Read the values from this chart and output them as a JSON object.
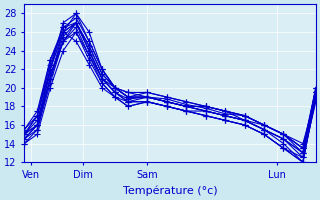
{
  "xlabel": "Température (°c)",
  "bg_color": "#cce8f0",
  "plot_bg_color": "#daeef5",
  "line_color": "#0000cc",
  "marker": "+",
  "markersize": 4,
  "linewidth": 0.8,
  "ylim": [
    12,
    29
  ],
  "yticks": [
    12,
    14,
    16,
    18,
    20,
    22,
    24,
    26,
    28
  ],
  "xlim": [
    0,
    90
  ],
  "xtick_positions": [
    2,
    18,
    38,
    78
  ],
  "xtick_labels": [
    "Ven",
    "Dim",
    "Sam",
    "Lun"
  ],
  "series": [
    {
      "x": [
        0,
        4,
        8,
        12,
        16,
        20,
        24,
        28,
        32,
        38,
        44,
        50,
        56,
        62,
        68,
        74,
        80,
        86,
        90
      ],
      "y": [
        15,
        16,
        21,
        26,
        28,
        25,
        22,
        20,
        19,
        19,
        18.5,
        18,
        18,
        17.5,
        17,
        16,
        15,
        14,
        19
      ]
    },
    {
      "x": [
        0,
        4,
        8,
        12,
        16,
        20,
        24,
        28,
        32,
        38,
        44,
        50,
        56,
        62,
        68,
        74,
        80,
        86,
        90
      ],
      "y": [
        15,
        16,
        22,
        27,
        28,
        26,
        22,
        20,
        19,
        19,
        18.5,
        18,
        18,
        17.5,
        16.5,
        15.5,
        14.5,
        13,
        20
      ]
    },
    {
      "x": [
        0,
        4,
        8,
        12,
        16,
        20,
        24,
        28,
        32,
        38,
        44,
        50,
        56,
        62,
        68,
        74,
        80,
        86,
        90
      ],
      "y": [
        14.5,
        15.5,
        20.5,
        25,
        27,
        24,
        21,
        19.5,
        18.5,
        18.5,
        18,
        17.5,
        17.5,
        17,
        16.5,
        15.5,
        14,
        12,
        19.5
      ]
    },
    {
      "x": [
        0,
        4,
        8,
        12,
        16,
        20,
        24,
        28,
        32,
        38,
        44,
        50,
        56,
        62,
        68,
        74,
        80,
        86,
        90
      ],
      "y": [
        15,
        16.5,
        21.5,
        25,
        26,
        23.5,
        21,
        20,
        19,
        19.5,
        19,
        18.5,
        18,
        17.5,
        17,
        16,
        15,
        13.5,
        19
      ]
    },
    {
      "x": [
        0,
        4,
        8,
        12,
        16,
        20,
        24,
        28,
        32,
        38,
        44,
        50,
        56,
        62,
        68,
        74,
        80,
        86,
        90
      ],
      "y": [
        14,
        15,
        20,
        24,
        26,
        23,
        20.5,
        19,
        18,
        18.5,
        18,
        17.5,
        17,
        16.5,
        16,
        15,
        13.5,
        12.5,
        18.5
      ]
    },
    {
      "x": [
        0,
        4,
        8,
        12,
        16,
        20,
        24,
        28,
        32,
        38,
        44,
        50,
        56,
        62,
        68,
        74,
        80,
        86,
        90
      ],
      "y": [
        15,
        17,
        22,
        26,
        27,
        24.5,
        21.5,
        20,
        19,
        19,
        18.5,
        18,
        17.5,
        17,
        16.5,
        15.5,
        14.5,
        13,
        20
      ]
    },
    {
      "x": [
        0,
        4,
        8,
        12,
        16,
        20,
        24,
        28,
        32,
        38,
        44,
        50,
        56,
        62,
        68,
        74,
        80,
        86,
        90
      ],
      "y": [
        15.5,
        17,
        22.5,
        26.5,
        27.5,
        25,
        22,
        20,
        19.5,
        19,
        18.8,
        18.2,
        17.8,
        17.2,
        17,
        16,
        15,
        13,
        19.5
      ]
    },
    {
      "x": [
        0,
        4,
        8,
        12,
        16,
        20,
        24,
        28,
        32,
        38,
        44,
        50,
        56,
        62,
        68,
        74,
        80,
        86,
        90
      ],
      "y": [
        14.5,
        16,
        21,
        25.5,
        27,
        24,
        21,
        19.5,
        18.5,
        18.5,
        18,
        17.5,
        17,
        16.5,
        16,
        15,
        13.5,
        12,
        19
      ]
    },
    {
      "x": [
        0,
        4,
        8,
        12,
        16,
        20,
        24,
        28,
        32,
        38,
        44,
        50,
        56,
        62,
        68,
        74,
        80,
        86,
        90
      ],
      "y": [
        15,
        17,
        23,
        26,
        25,
        22.5,
        20,
        19,
        18.5,
        19,
        18.5,
        18,
        17.5,
        17,
        16.5,
        16,
        15,
        13.5,
        19.5
      ]
    },
    {
      "x": [
        0,
        4,
        8,
        12,
        16,
        20,
        24,
        28,
        32,
        38,
        44,
        50,
        56,
        62,
        68,
        74,
        80,
        86,
        90
      ],
      "y": [
        14.5,
        16,
        22,
        26,
        27,
        24,
        21,
        19.5,
        18.8,
        19,
        18.5,
        18,
        17.5,
        17,
        16.5,
        15.5,
        14.5,
        12.5,
        19
      ]
    },
    {
      "x": [
        0,
        4,
        8,
        12,
        16,
        20,
        24,
        28,
        32,
        38,
        44,
        50,
        56,
        62,
        68,
        74,
        80,
        86,
        90
      ],
      "y": [
        15.5,
        17.5,
        23,
        26.5,
        27,
        24.5,
        21.5,
        20,
        19.5,
        19.5,
        19,
        18.5,
        18,
        17.5,
        17,
        16,
        15,
        13.5,
        20
      ]
    },
    {
      "x": [
        0,
        4,
        8,
        12,
        16,
        20,
        24,
        28,
        32,
        38,
        44,
        50,
        56,
        62,
        68,
        74,
        80,
        86,
        90
      ],
      "y": [
        14,
        15.5,
        21,
        25,
        26.5,
        23.5,
        20.5,
        19,
        18,
        18.5,
        18,
        17.5,
        17,
        16.5,
        16,
        15,
        13.5,
        12,
        19
      ]
    }
  ]
}
